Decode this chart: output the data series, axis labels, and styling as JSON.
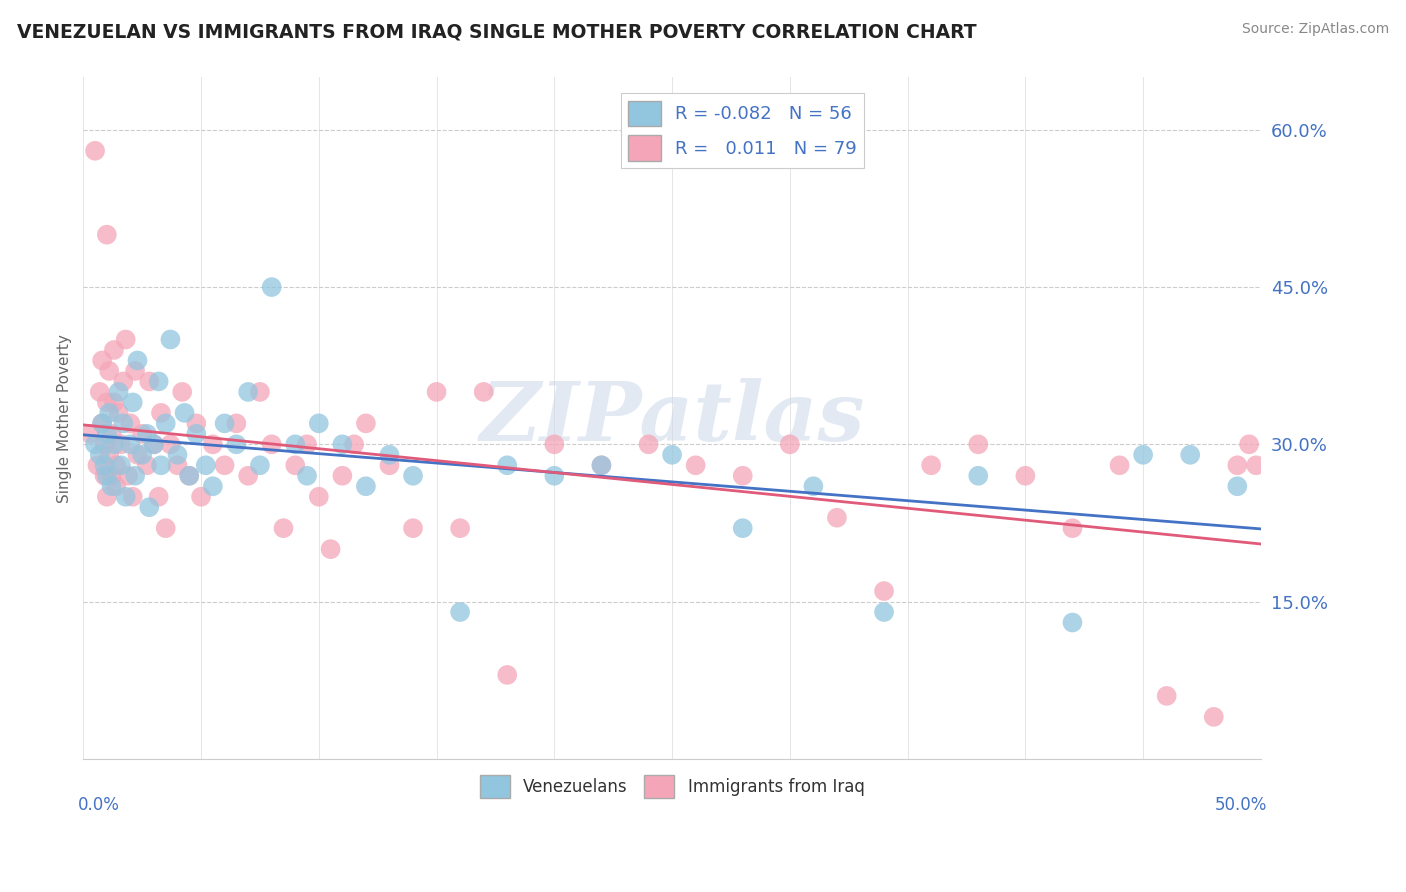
{
  "title": "VENEZUELAN VS IMMIGRANTS FROM IRAQ SINGLE MOTHER POVERTY CORRELATION CHART",
  "source": "Source: ZipAtlas.com",
  "ylabel": "Single Mother Poverty",
  "ylabel_right_ticks": [
    "15.0%",
    "30.0%",
    "45.0%",
    "60.0%"
  ],
  "ylabel_right_vals": [
    0.15,
    0.3,
    0.45,
    0.6
  ],
  "venezuelan_legend": "Venezuelans",
  "iraq_legend": "Immigrants from Iraq",
  "blue_color": "#92c5de",
  "pink_color": "#f4a6b8",
  "blue_line_color": "#4472c4",
  "pink_line_color": "#e05a7a",
  "watermark": "ZIPatlas",
  "xlim": [
    0.0,
    0.5
  ],
  "ylim": [
    0.0,
    0.65
  ],
  "venezuelan_x": [
    0.005,
    0.007,
    0.008,
    0.009,
    0.01,
    0.01,
    0.011,
    0.012,
    0.013,
    0.015,
    0.016,
    0.017,
    0.018,
    0.02,
    0.021,
    0.022,
    0.023,
    0.025,
    0.027,
    0.028,
    0.03,
    0.032,
    0.033,
    0.035,
    0.037,
    0.04,
    0.043,
    0.045,
    0.048,
    0.052,
    0.055,
    0.06,
    0.065,
    0.07,
    0.075,
    0.08,
    0.09,
    0.095,
    0.1,
    0.11,
    0.12,
    0.13,
    0.14,
    0.16,
    0.18,
    0.2,
    0.22,
    0.25,
    0.28,
    0.31,
    0.34,
    0.38,
    0.42,
    0.45,
    0.47,
    0.49
  ],
  "venezuelan_y": [
    0.3,
    0.29,
    0.32,
    0.28,
    0.31,
    0.27,
    0.33,
    0.26,
    0.3,
    0.35,
    0.28,
    0.32,
    0.25,
    0.3,
    0.34,
    0.27,
    0.38,
    0.29,
    0.31,
    0.24,
    0.3,
    0.36,
    0.28,
    0.32,
    0.4,
    0.29,
    0.33,
    0.27,
    0.31,
    0.28,
    0.26,
    0.32,
    0.3,
    0.35,
    0.28,
    0.45,
    0.3,
    0.27,
    0.32,
    0.3,
    0.26,
    0.29,
    0.27,
    0.14,
    0.28,
    0.27,
    0.28,
    0.29,
    0.22,
    0.26,
    0.14,
    0.27,
    0.13,
    0.29,
    0.29,
    0.26
  ],
  "iraq_x": [
    0.003,
    0.005,
    0.006,
    0.007,
    0.008,
    0.008,
    0.009,
    0.009,
    0.01,
    0.01,
    0.01,
    0.011,
    0.011,
    0.012,
    0.012,
    0.013,
    0.013,
    0.014,
    0.014,
    0.015,
    0.016,
    0.017,
    0.018,
    0.019,
    0.02,
    0.021,
    0.022,
    0.023,
    0.025,
    0.027,
    0.028,
    0.03,
    0.032,
    0.033,
    0.035,
    0.037,
    0.04,
    0.042,
    0.045,
    0.048,
    0.05,
    0.055,
    0.06,
    0.065,
    0.07,
    0.075,
    0.08,
    0.085,
    0.09,
    0.095,
    0.1,
    0.105,
    0.11,
    0.115,
    0.12,
    0.13,
    0.14,
    0.15,
    0.16,
    0.17,
    0.18,
    0.2,
    0.22,
    0.24,
    0.26,
    0.28,
    0.3,
    0.32,
    0.34,
    0.36,
    0.38,
    0.4,
    0.42,
    0.44,
    0.46,
    0.48,
    0.49,
    0.495,
    0.498
  ],
  "iraq_y": [
    0.31,
    0.58,
    0.28,
    0.35,
    0.32,
    0.38,
    0.27,
    0.3,
    0.25,
    0.34,
    0.5,
    0.29,
    0.37,
    0.27,
    0.31,
    0.39,
    0.34,
    0.28,
    0.26,
    0.33,
    0.3,
    0.36,
    0.4,
    0.27,
    0.32,
    0.25,
    0.37,
    0.29,
    0.31,
    0.28,
    0.36,
    0.3,
    0.25,
    0.33,
    0.22,
    0.3,
    0.28,
    0.35,
    0.27,
    0.32,
    0.25,
    0.3,
    0.28,
    0.32,
    0.27,
    0.35,
    0.3,
    0.22,
    0.28,
    0.3,
    0.25,
    0.2,
    0.27,
    0.3,
    0.32,
    0.28,
    0.22,
    0.35,
    0.22,
    0.35,
    0.08,
    0.3,
    0.28,
    0.3,
    0.28,
    0.27,
    0.3,
    0.23,
    0.16,
    0.28,
    0.3,
    0.27,
    0.22,
    0.28,
    0.06,
    0.04,
    0.28,
    0.3,
    0.28
  ]
}
